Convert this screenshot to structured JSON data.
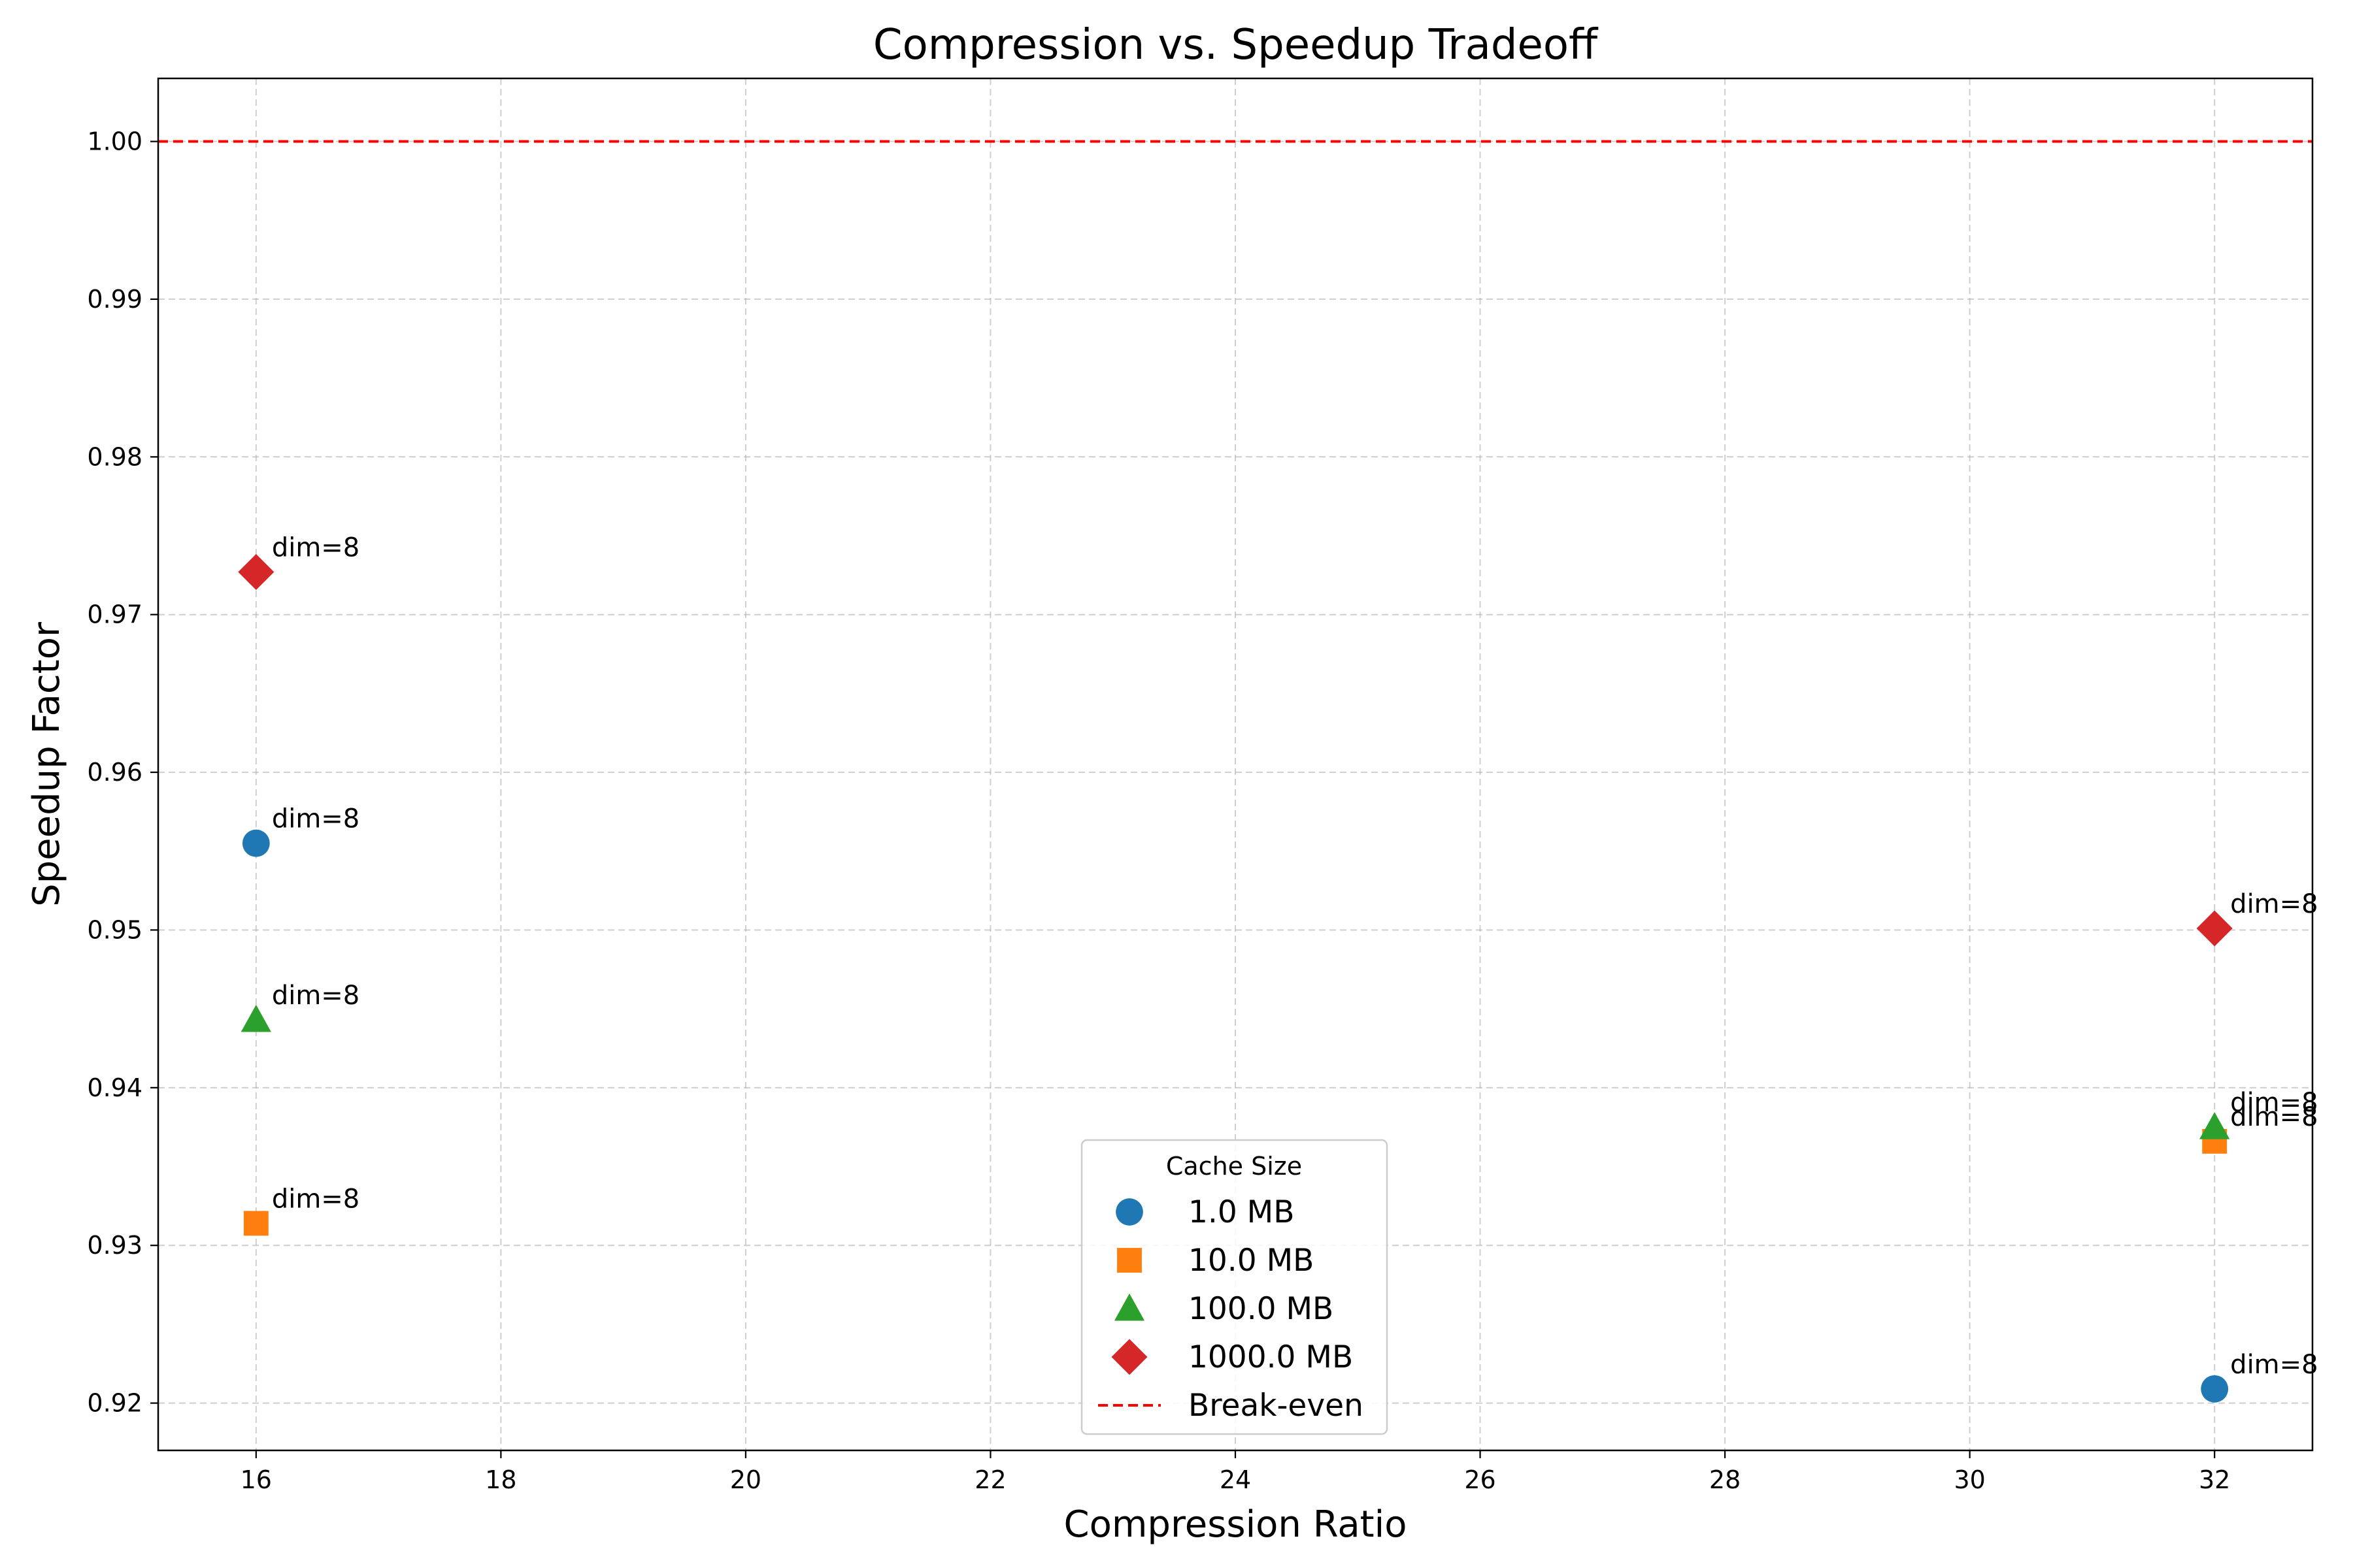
{
  "chart_data": {
    "type": "scatter",
    "title": "Compression vs. Speedup Tradeoff",
    "xlabel": "Compression Ratio",
    "ylabel": "Speedup Factor",
    "xlim": [
      15.2,
      32.8
    ],
    "ylim": [
      0.917,
      1.004
    ],
    "xticks": [
      16,
      18,
      20,
      22,
      24,
      26,
      28,
      30,
      32
    ],
    "yticks": [
      0.92,
      0.93,
      0.94,
      0.95,
      0.96,
      0.97,
      0.98,
      0.99,
      1.0
    ],
    "xtick_labels": [
      "16",
      "18",
      "20",
      "22",
      "24",
      "26",
      "28",
      "30",
      "32"
    ],
    "ytick_labels": [
      "0.92",
      "0.93",
      "0.94",
      "0.95",
      "0.96",
      "0.97",
      "0.98",
      "0.99",
      "1.00"
    ],
    "grid": true,
    "legend": {
      "title": "Cache Size",
      "placement": "lower center"
    },
    "series": [
      {
        "name": "1.0 MB",
        "marker": "circle",
        "color": "#1f77b4",
        "points": [
          {
            "x": 16,
            "y": 0.9555,
            "label": "dim=8"
          },
          {
            "x": 32,
            "y": 0.9209,
            "label": "dim=8"
          }
        ]
      },
      {
        "name": "10.0 MB",
        "marker": "square",
        "color": "#ff7f0e",
        "points": [
          {
            "x": 16,
            "y": 0.9314,
            "label": "dim=8"
          },
          {
            "x": 32,
            "y": 0.9366,
            "label": "dim=8"
          }
        ]
      },
      {
        "name": "100.0 MB",
        "marker": "triangle",
        "color": "#2ca02c",
        "points": [
          {
            "x": 16,
            "y": 0.9443,
            "label": "dim=8"
          },
          {
            "x": 32,
            "y": 0.9375,
            "label": "dim=8"
          }
        ]
      },
      {
        "name": "1000.0 MB",
        "marker": "diamond",
        "color": "#d62728",
        "points": [
          {
            "x": 16,
            "y": 0.9727,
            "label": "dim=8"
          },
          {
            "x": 32,
            "y": 0.9501,
            "label": "dim=8"
          }
        ]
      }
    ],
    "reference_line": {
      "name": "Break-even",
      "y": 1.0,
      "color": "#ff0000",
      "style": "dashed"
    }
  }
}
